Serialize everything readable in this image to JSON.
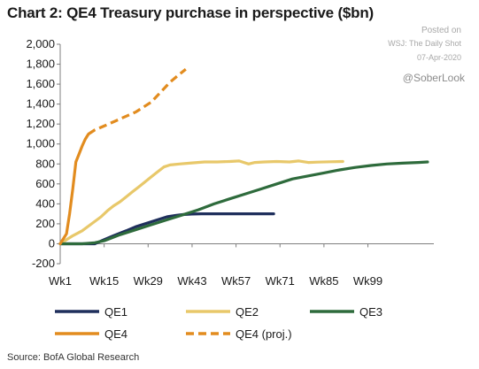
{
  "header": {
    "title": "Chart 2: QE4 Treasury purchase in perspective ($bn)"
  },
  "watermark": {
    "posted": "Posted on",
    "source": "WSJ: The Daily Shot",
    "date": "07-Apr-2020",
    "handle": "@SoberLook"
  },
  "footer": {
    "source": "Source: BofA Global Research"
  },
  "chart_data": {
    "type": "line",
    "xlabel": "",
    "ylabel": "",
    "xlim": [
      1,
      120
    ],
    "ylim": [
      -200,
      2000
    ],
    "x_ticks": [
      {
        "value": 1,
        "label": "Wk1"
      },
      {
        "value": 15,
        "label": "Wk15"
      },
      {
        "value": 29,
        "label": "Wk29"
      },
      {
        "value": 43,
        "label": "Wk43"
      },
      {
        "value": 57,
        "label": "Wk57"
      },
      {
        "value": 71,
        "label": "Wk71"
      },
      {
        "value": 85,
        "label": "Wk85"
      },
      {
        "value": 99,
        "label": "Wk99"
      }
    ],
    "y_ticks": [
      {
        "value": 2000,
        "label": "2,000"
      },
      {
        "value": 1800,
        "label": "1,800"
      },
      {
        "value": 1600,
        "label": "1,600"
      },
      {
        "value": 1400,
        "label": "1,400"
      },
      {
        "value": 1200,
        "label": "1,200"
      },
      {
        "value": 1000,
        "label": "1,000"
      },
      {
        "value": 800,
        "label": "800"
      },
      {
        "value": 600,
        "label": "600"
      },
      {
        "value": 400,
        "label": "400"
      },
      {
        "value": 200,
        "label": "200"
      },
      {
        "value": 0,
        "label": "0"
      },
      {
        "value": -200,
        "label": "-200"
      }
    ],
    "grid": false,
    "legend_position": "bottom",
    "series": [
      {
        "name": "QE1",
        "color": "#1f2f5c",
        "style": "solid",
        "points": [
          [
            1,
            0
          ],
          [
            12,
            0
          ],
          [
            15,
            40
          ],
          [
            18,
            80
          ],
          [
            22,
            130
          ],
          [
            25,
            170
          ],
          [
            29,
            210
          ],
          [
            32,
            240
          ],
          [
            35,
            270
          ],
          [
            38,
            285
          ],
          [
            40,
            292
          ],
          [
            43,
            298
          ],
          [
            46,
            300
          ],
          [
            50,
            300
          ],
          [
            55,
            300
          ],
          [
            60,
            300
          ],
          [
            65,
            300
          ],
          [
            69,
            300
          ]
        ]
      },
      {
        "name": "QE2",
        "color": "#e8c86a",
        "style": "solid",
        "points": [
          [
            1,
            0
          ],
          [
            3,
            40
          ],
          [
            5,
            80
          ],
          [
            8,
            130
          ],
          [
            11,
            200
          ],
          [
            14,
            270
          ],
          [
            16,
            330
          ],
          [
            18,
            380
          ],
          [
            20,
            420
          ],
          [
            22,
            470
          ],
          [
            24,
            520
          ],
          [
            26,
            570
          ],
          [
            28,
            620
          ],
          [
            30,
            670
          ],
          [
            32,
            720
          ],
          [
            34,
            770
          ],
          [
            36,
            790
          ],
          [
            39,
            800
          ],
          [
            43,
            810
          ],
          [
            47,
            820
          ],
          [
            51,
            820
          ],
          [
            55,
            825
          ],
          [
            58,
            830
          ],
          [
            61,
            800
          ],
          [
            63,
            815
          ],
          [
            66,
            820
          ],
          [
            70,
            825
          ],
          [
            74,
            820
          ],
          [
            77,
            830
          ],
          [
            80,
            815
          ],
          [
            83,
            818
          ],
          [
            87,
            822
          ],
          [
            91,
            825
          ]
        ]
      },
      {
        "name": "QE3",
        "color": "#2e6b3c",
        "style": "solid",
        "points": [
          [
            1,
            0
          ],
          [
            8,
            0
          ],
          [
            12,
            10
          ],
          [
            15,
            30
          ],
          [
            20,
            90
          ],
          [
            25,
            140
          ],
          [
            30,
            190
          ],
          [
            35,
            240
          ],
          [
            40,
            290
          ],
          [
            45,
            340
          ],
          [
            50,
            400
          ],
          [
            55,
            450
          ],
          [
            60,
            500
          ],
          [
            65,
            550
          ],
          [
            70,
            600
          ],
          [
            75,
            650
          ],
          [
            80,
            680
          ],
          [
            85,
            710
          ],
          [
            90,
            740
          ],
          [
            95,
            765
          ],
          [
            100,
            785
          ],
          [
            105,
            800
          ],
          [
            110,
            808
          ],
          [
            115,
            815
          ],
          [
            118,
            820
          ]
        ]
      },
      {
        "name": "QE4",
        "color": "#e28c1f",
        "style": "solid",
        "points": [
          [
            1,
            0
          ],
          [
            3,
            100
          ],
          [
            4,
            300
          ],
          [
            5,
            550
          ],
          [
            6,
            820
          ],
          [
            7,
            900
          ],
          [
            8,
            980
          ],
          [
            9,
            1050
          ],
          [
            10,
            1100
          ]
        ]
      },
      {
        "name": "QE4 (proj.)",
        "color": "#e28c1f",
        "style": "dashed",
        "points": [
          [
            10,
            1100
          ],
          [
            12,
            1140
          ],
          [
            15,
            1180
          ],
          [
            20,
            1250
          ],
          [
            25,
            1320
          ],
          [
            30,
            1420
          ],
          [
            33,
            1520
          ],
          [
            36,
            1620
          ],
          [
            39,
            1700
          ],
          [
            41,
            1750
          ]
        ]
      }
    ]
  }
}
